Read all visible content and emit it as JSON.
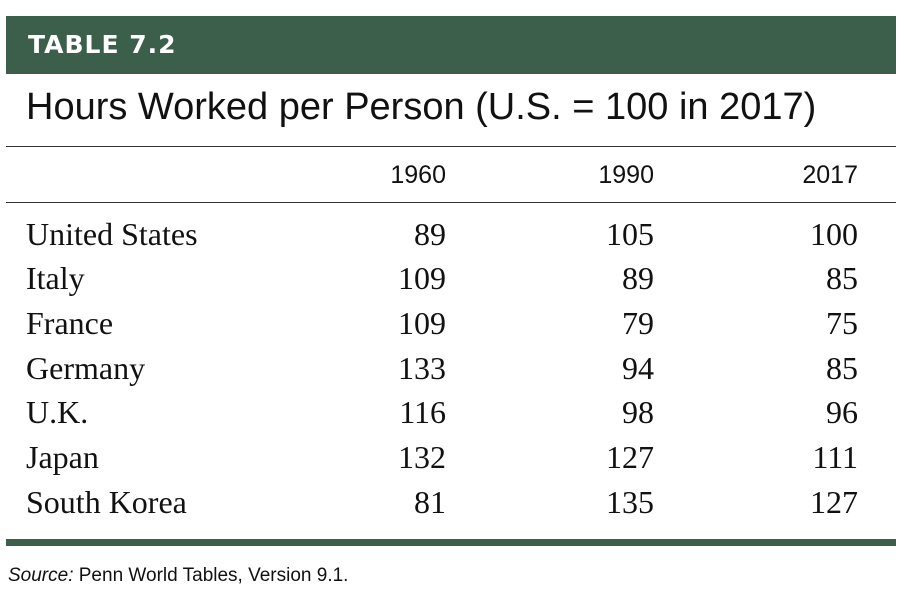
{
  "banner": {
    "label": "TABLE 7.2"
  },
  "title": "Hours Worked per Person (U.S. = 100 in 2017)",
  "columns": [
    "1960",
    "1990",
    "2017"
  ],
  "rows": [
    {
      "country": "United States",
      "v1960": "89",
      "v1990": "105",
      "v2017": "100"
    },
    {
      "country": "Italy",
      "v1960": "109",
      "v1990": "89",
      "v2017": "85"
    },
    {
      "country": "France",
      "v1960": "109",
      "v1990": "79",
      "v2017": "75"
    },
    {
      "country": "Germany",
      "v1960": "133",
      "v1990": "94",
      "v2017": "85"
    },
    {
      "country": "U.K.",
      "v1960": "116",
      "v1990": "98",
      "v2017": "96"
    },
    {
      "country": "Japan",
      "v1960": "132",
      "v1990": "127",
      "v2017": "111"
    },
    {
      "country": "South Korea",
      "v1960": "81",
      "v1990": "135",
      "v2017": "127"
    }
  ],
  "source": {
    "label": "Source:",
    "text": " Penn World Tables, Version 9.1."
  },
  "colors": {
    "accent": "#3c5f4c",
    "text": "#111111"
  }
}
